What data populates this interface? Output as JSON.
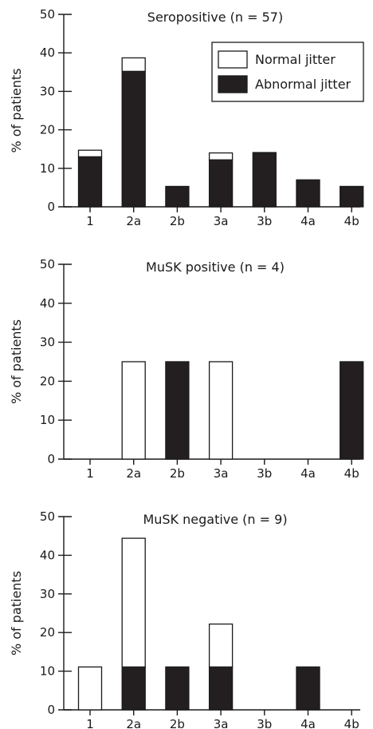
{
  "legend": {
    "entries": [
      {
        "label": "Normal jitter",
        "color": "#ffffff"
      },
      {
        "label": "Abnormal jitter",
        "color": "#231f20"
      }
    ],
    "placement": "top-right of first chart"
  },
  "chart_data": [
    {
      "type": "bar",
      "stacked": true,
      "title": "Seropositive (n = 57)",
      "ylabel": "% of patients",
      "xlabel": "",
      "ylim": [
        0,
        50
      ],
      "yticks": [
        "0",
        "10",
        "20",
        "30",
        "40",
        "50"
      ],
      "categories": [
        "1",
        "2a",
        "2b",
        "3a",
        "3b",
        "4a",
        "4b"
      ],
      "series": [
        {
          "name": "Abnormal jitter",
          "color": "#231f20",
          "values": [
            13,
            35.2,
            5.3,
            12.2,
            14.1,
            7,
            5.3
          ]
        },
        {
          "name": "Normal jitter",
          "color": "#ffffff",
          "values": [
            1.7,
            3.5,
            0,
            1.8,
            0,
            0,
            0
          ]
        }
      ]
    },
    {
      "type": "bar",
      "stacked": true,
      "title": "MuSK positive (n = 4)",
      "ylabel": "% of patients",
      "xlabel": "",
      "ylim": [
        0,
        50
      ],
      "yticks": [
        "0",
        "10",
        "20",
        "30",
        "40",
        "50"
      ],
      "categories": [
        "1",
        "2a",
        "2b",
        "3a",
        "3b",
        "4a",
        "4b"
      ],
      "series": [
        {
          "name": "Abnormal jitter",
          "color": "#231f20",
          "values": [
            0,
            0,
            25,
            0,
            0,
            0,
            25
          ]
        },
        {
          "name": "Normal jitter",
          "color": "#ffffff",
          "values": [
            0,
            25,
            0,
            25,
            0,
            0,
            0
          ]
        }
      ]
    },
    {
      "type": "bar",
      "stacked": true,
      "title": "MuSK negative (n = 9)",
      "ylabel": "% of patients",
      "xlabel": "",
      "ylim": [
        0,
        50
      ],
      "yticks": [
        "0",
        "10",
        "20",
        "30",
        "40",
        "50"
      ],
      "categories": [
        "1",
        "2a",
        "2b",
        "3a",
        "3b",
        "4a",
        "4b"
      ],
      "series": [
        {
          "name": "Abnormal jitter",
          "color": "#231f20",
          "values": [
            0,
            11.1,
            11.1,
            11.1,
            0,
            11.1,
            0
          ]
        },
        {
          "name": "Normal jitter",
          "color": "#ffffff",
          "values": [
            11.1,
            33.3,
            0,
            11.1,
            0,
            0,
            0
          ]
        }
      ]
    }
  ]
}
